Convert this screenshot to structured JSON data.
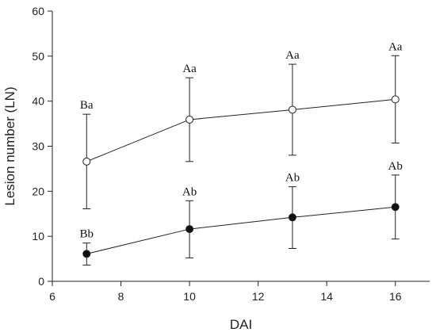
{
  "chart_data": {
    "type": "line",
    "title": "",
    "xlabel": "DAI",
    "ylabel": "Lesion number (LN)",
    "xlim": [
      6,
      17
    ],
    "ylim": [
      0,
      60
    ],
    "x_ticks": [
      6,
      8,
      10,
      12,
      14,
      16
    ],
    "y_ticks": [
      0,
      10,
      20,
      30,
      40,
      50,
      60
    ],
    "grid": false,
    "legend": "none",
    "series": [
      {
        "marker": "open-circle",
        "x": [
          7,
          10,
          13,
          16
        ],
        "y": [
          26.6,
          35.9,
          38.1,
          40.4
        ],
        "err_high": [
          37.1,
          45.2,
          48.2,
          50.1
        ],
        "err_low": [
          16.1,
          26.6,
          28.0,
          30.7
        ],
        "annotations": [
          "Ba",
          "Aa",
          "Aa",
          "Aa"
        ]
      },
      {
        "marker": "filled-circle",
        "x": [
          7,
          10,
          13,
          16
        ],
        "y": [
          6.1,
          11.6,
          14.2,
          16.5
        ],
        "err_high": [
          8.5,
          17.9,
          21.0,
          23.6
        ],
        "err_low": [
          3.6,
          5.2,
          7.3,
          9.4
        ],
        "annotations": [
          "Bb",
          "Ab",
          "Ab",
          "Ab"
        ]
      }
    ]
  }
}
